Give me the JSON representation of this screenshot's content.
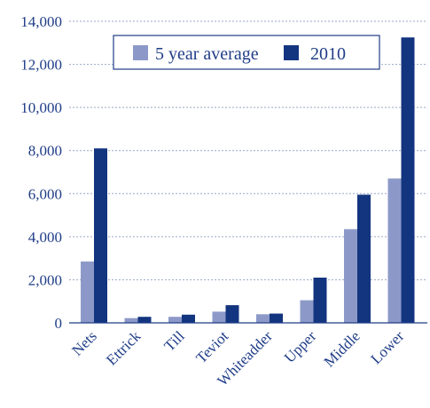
{
  "chart_data": {
    "type": "bar",
    "title": "",
    "xlabel": "",
    "ylabel": "",
    "categories": [
      "Nets",
      "Ettrick",
      "Till",
      "Teviot",
      "Whiteadder",
      "Upper",
      "Middle",
      "Lower"
    ],
    "series": [
      {
        "name": "5 year average",
        "color": "#8c99c8",
        "values": [
          2850,
          220,
          280,
          520,
          400,
          1050,
          4350,
          6700
        ]
      },
      {
        "name": "2010",
        "color": "#13357f",
        "values": [
          8100,
          280,
          380,
          820,
          430,
          2100,
          5950,
          13250
        ]
      }
    ],
    "ylim": [
      0,
      14000
    ],
    "yticks": [
      0,
      2000,
      4000,
      6000,
      8000,
      10000,
      12000,
      14000
    ],
    "ytick_labels": [
      "0",
      "2,000",
      "4,000",
      "6,000",
      "8,000",
      "10,000",
      "12,000",
      "14,000"
    ],
    "grid": true,
    "legend": "top-center"
  }
}
